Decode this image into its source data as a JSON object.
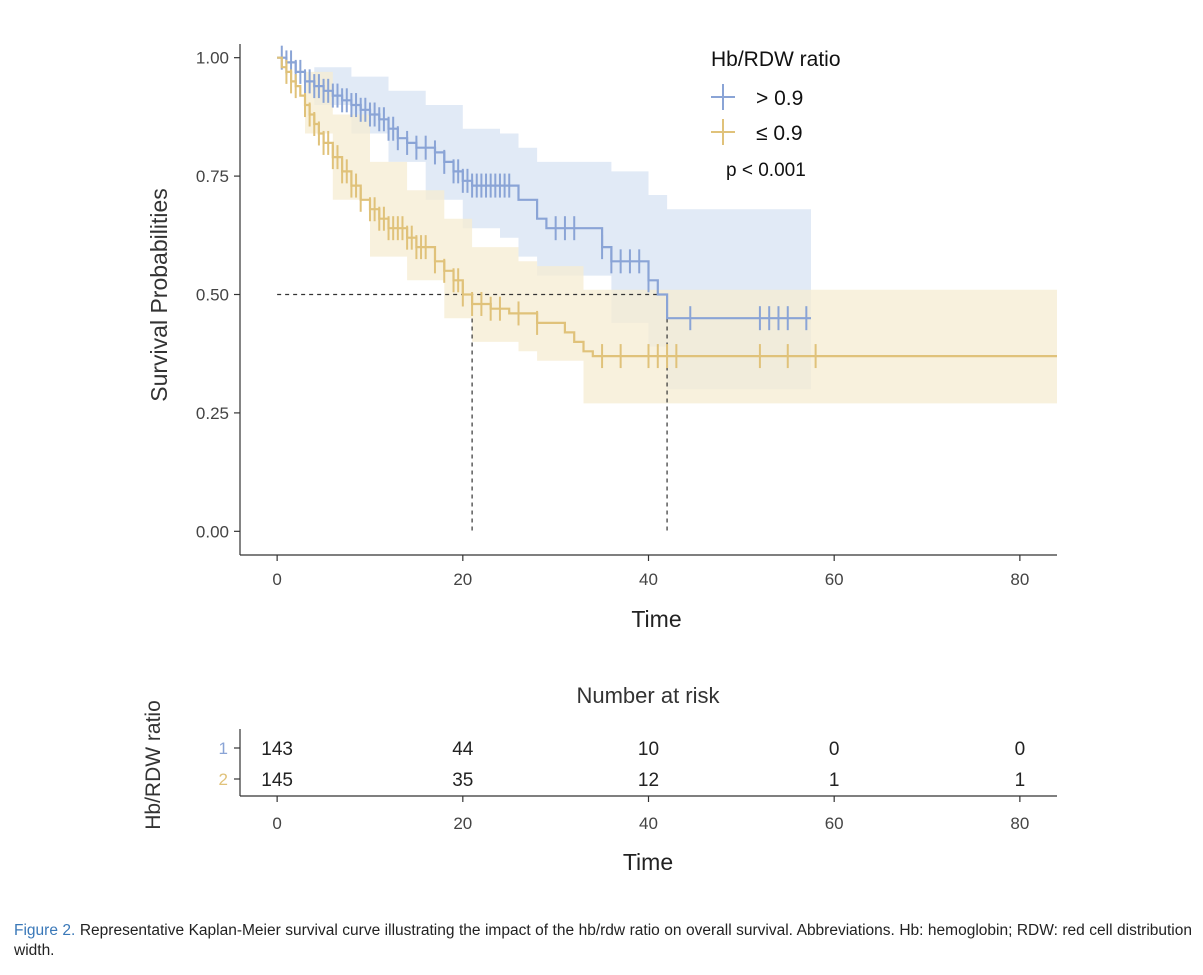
{
  "colors": {
    "high": "#8aa4d6",
    "low": "#e0c27a",
    "high_band": "#dce6f5",
    "low_band": "#f6ecd2",
    "overlap_band": "#d9dccf",
    "axis": "#333333",
    "reference_line": "#333333"
  },
  "chart_data": [
    {
      "type": "line",
      "subtype": "kaplan-meier",
      "title": "",
      "xlabel": "Time",
      "ylabel": "Survival Probabilities",
      "xlim": [
        -4,
        84
      ],
      "ylim": [
        -0.05,
        1.05
      ],
      "xticks": [
        0,
        20,
        40,
        60,
        80
      ],
      "yticks": [
        "0.00",
        "0.25",
        "0.50",
        "0.75",
        "1.00"
      ],
      "legend": {
        "title": "Hb/RDW ratio",
        "position": "top-right",
        "entries": [
          "> 0.9",
          "≤ 0.9"
        ]
      },
      "annotation": "p < 0.001",
      "median_reference": {
        "y": 0.5,
        "x": [
          21,
          42
        ]
      },
      "series": [
        {
          "name": "> 0.9",
          "color_key": "high",
          "steps": [
            [
              0,
              1.0
            ],
            [
              1,
              0.99
            ],
            [
              2,
              0.97
            ],
            [
              3,
              0.95
            ],
            [
              4,
              0.94
            ],
            [
              5,
              0.93
            ],
            [
              6,
              0.92
            ],
            [
              7,
              0.91
            ],
            [
              8,
              0.9
            ],
            [
              9,
              0.89
            ],
            [
              10,
              0.88
            ],
            [
              11,
              0.87
            ],
            [
              12,
              0.85
            ],
            [
              13,
              0.83
            ],
            [
              14,
              0.82
            ],
            [
              15,
              0.81
            ],
            [
              17,
              0.8
            ],
            [
              18,
              0.78
            ],
            [
              19,
              0.76
            ],
            [
              20,
              0.74
            ],
            [
              21,
              0.73
            ],
            [
              24,
              0.73
            ],
            [
              26,
              0.7
            ],
            [
              28,
              0.66
            ],
            [
              29,
              0.64
            ],
            [
              35,
              0.6
            ],
            [
              36,
              0.57
            ],
            [
              40,
              0.53
            ],
            [
              41,
              0.5
            ],
            [
              42,
              0.45
            ],
            [
              57.5,
              0.45
            ]
          ],
          "ci_upper": [
            [
              0,
              1.0
            ],
            [
              4,
              0.98
            ],
            [
              8,
              0.96
            ],
            [
              12,
              0.93
            ],
            [
              16,
              0.9
            ],
            [
              20,
              0.85
            ],
            [
              24,
              0.84
            ],
            [
              26,
              0.81
            ],
            [
              28,
              0.78
            ],
            [
              36,
              0.76
            ],
            [
              40,
              0.71
            ],
            [
              42,
              0.68
            ],
            [
              57.5,
              0.68
            ]
          ],
          "ci_lower": [
            [
              0,
              1.0
            ],
            [
              4,
              0.9
            ],
            [
              8,
              0.84
            ],
            [
              12,
              0.78
            ],
            [
              16,
              0.7
            ],
            [
              20,
              0.64
            ],
            [
              24,
              0.62
            ],
            [
              26,
              0.58
            ],
            [
              28,
              0.54
            ],
            [
              36,
              0.44
            ],
            [
              40,
              0.39
            ],
            [
              42,
              0.3
            ],
            [
              57.5,
              0.3
            ]
          ],
          "censor_x": [
            0.5,
            1,
            1.5,
            2,
            2.5,
            3,
            3.5,
            4,
            4.5,
            5,
            5.5,
            6,
            6.5,
            7,
            7.5,
            8,
            8.5,
            9,
            9.5,
            10,
            10.5,
            11,
            11.5,
            12,
            12.5,
            13,
            14,
            15,
            16,
            17,
            18,
            19,
            19.5,
            20,
            20.5,
            21,
            21.5,
            22,
            22.5,
            23,
            23.5,
            24,
            24.5,
            25,
            30,
            31,
            32,
            35,
            36,
            37,
            38,
            39,
            40,
            44.5,
            52,
            53,
            54,
            55,
            57
          ]
        },
        {
          "name": "≤ 0.9",
          "color_key": "low",
          "steps": [
            [
              0,
              1.0
            ],
            [
              0.5,
              0.98
            ],
            [
              1,
              0.97
            ],
            [
              1.5,
              0.95
            ],
            [
              2,
              0.94
            ],
            [
              2.5,
              0.92
            ],
            [
              3,
              0.9
            ],
            [
              3.5,
              0.88
            ],
            [
              4,
              0.86
            ],
            [
              4.5,
              0.84
            ],
            [
              5,
              0.82
            ],
            [
              6,
              0.79
            ],
            [
              7,
              0.76
            ],
            [
              8,
              0.73
            ],
            [
              9,
              0.7
            ],
            [
              10,
              0.68
            ],
            [
              11,
              0.66
            ],
            [
              12,
              0.64
            ],
            [
              14,
              0.62
            ],
            [
              15,
              0.6
            ],
            [
              17,
              0.57
            ],
            [
              18,
              0.55
            ],
            [
              19,
              0.53
            ],
            [
              20,
              0.5
            ],
            [
              21,
              0.48
            ],
            [
              23,
              0.47
            ],
            [
              25,
              0.46
            ],
            [
              28,
              0.44
            ],
            [
              31,
              0.42
            ],
            [
              32,
              0.4
            ],
            [
              33,
              0.38
            ],
            [
              34,
              0.37
            ],
            [
              84,
              0.37
            ]
          ],
          "ci_upper": [
            [
              0,
              1.0
            ],
            [
              3,
              0.97
            ],
            [
              6,
              0.88
            ],
            [
              10,
              0.78
            ],
            [
              14,
              0.72
            ],
            [
              18,
              0.66
            ],
            [
              21,
              0.6
            ],
            [
              26,
              0.57
            ],
            [
              28,
              0.56
            ],
            [
              33,
              0.51
            ],
            [
              84,
              0.51
            ]
          ],
          "ci_lower": [
            [
              0,
              1.0
            ],
            [
              3,
              0.84
            ],
            [
              6,
              0.7
            ],
            [
              10,
              0.58
            ],
            [
              14,
              0.53
            ],
            [
              18,
              0.45
            ],
            [
              21,
              0.4
            ],
            [
              26,
              0.38
            ],
            [
              28,
              0.36
            ],
            [
              33,
              0.27
            ],
            [
              84,
              0.27
            ]
          ],
          "censor_x": [
            1,
            1.5,
            2,
            3,
            3.5,
            4,
            4.5,
            5,
            5.5,
            6,
            6.5,
            7,
            7.5,
            8,
            8.5,
            9,
            10,
            10.5,
            11,
            11.5,
            12,
            12.5,
            13,
            13.5,
            14,
            14.5,
            15,
            15.5,
            16,
            17,
            18,
            19,
            19.5,
            20,
            21,
            22,
            23,
            24,
            26,
            28,
            35,
            37,
            40,
            41,
            42,
            43,
            52,
            55,
            58
          ]
        }
      ]
    },
    {
      "type": "table",
      "title": "Number at risk",
      "xlabel": "Time",
      "ylabel": "Hb/RDW ratio",
      "xlim": [
        -4,
        84
      ],
      "xticks": [
        0,
        20,
        40,
        60,
        80
      ],
      "rows": [
        {
          "label": "1",
          "color_key": "high",
          "values": [
            143,
            44,
            10,
            0,
            0
          ]
        },
        {
          "label": "2",
          "color_key": "low",
          "values": [
            145,
            35,
            12,
            1,
            1
          ]
        }
      ]
    }
  ],
  "caption": {
    "label": "Figure 2.",
    "text": " Representative Kaplan-Meier survival curve illustrating the impact of the hb/rdw ratio on overall survival. Abbreviations. Hb: hemoglobin; RDW: red cell distribution width."
  }
}
